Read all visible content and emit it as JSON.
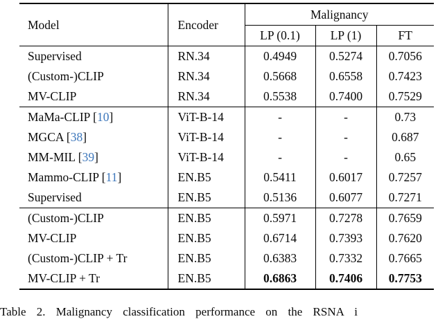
{
  "table": {
    "header": {
      "model": "Model",
      "encoder": "Encoder",
      "group": "Malignancy",
      "subcols": [
        "LP (0.1)",
        "LP (1)",
        "FT"
      ]
    },
    "sections": [
      {
        "rows": [
          {
            "model": "Supervised",
            "cite": null,
            "encoder": "RN.34",
            "lp01": "0.4949",
            "lp1": "0.5274",
            "ft": "0.7056",
            "bold": false
          },
          {
            "model": "(Custom-)CLIP",
            "cite": null,
            "encoder": "RN.34",
            "lp01": "0.5668",
            "lp1": "0.6558",
            "ft": "0.7423",
            "bold": false
          },
          {
            "model": "MV-CLIP",
            "cite": null,
            "encoder": "RN.34",
            "lp01": "0.5538",
            "lp1": "0.7400",
            "ft": "0.7529",
            "bold": false
          }
        ]
      },
      {
        "rows": [
          {
            "model": "MaMa-CLIP",
            "cite": "10",
            "encoder": "ViT-B-14",
            "lp01": "-",
            "lp1": "-",
            "ft": "0.73",
            "bold": false
          },
          {
            "model": "MGCA",
            "cite": "38",
            "encoder": "ViT-B-14",
            "lp01": "-",
            "lp1": "-",
            "ft": "0.687",
            "bold": false
          },
          {
            "model": "MM-MIL",
            "cite": "39",
            "encoder": "ViT-B-14",
            "lp01": "-",
            "lp1": "-",
            "ft": "0.65",
            "bold": false
          },
          {
            "model": "Mammo-CLIP",
            "cite": "11",
            "encoder": "EN.B5",
            "lp01": "0.5411",
            "lp1": "0.6017",
            "ft": "0.7257",
            "bold": false
          },
          {
            "model": "Supervised",
            "cite": null,
            "encoder": "EN.B5",
            "lp01": "0.5136",
            "lp1": "0.6077",
            "ft": "0.7271",
            "bold": false
          }
        ]
      },
      {
        "rows": [
          {
            "model": "(Custom-)CLIP",
            "cite": null,
            "encoder": "EN.B5",
            "lp01": "0.5971",
            "lp1": "0.7278",
            "ft": "0.7659",
            "bold": false
          },
          {
            "model": "MV-CLIP",
            "cite": null,
            "encoder": "EN.B5",
            "lp01": "0.6714",
            "lp1": "0.7393",
            "ft": "0.7620",
            "bold": false
          },
          {
            "model": "(Custom-)CLIP + Tr",
            "cite": null,
            "encoder": "EN.B5",
            "lp01": "0.6383",
            "lp1": "0.7332",
            "ft": "0.7665",
            "bold": false
          },
          {
            "model": "MV-CLIP + Tr",
            "cite": null,
            "encoder": "EN.B5",
            "lp01": "0.6863",
            "lp1": "0.7406",
            "ft": "0.7753",
            "bold": true
          }
        ]
      }
    ]
  },
  "caption": "Table 2. Malignancy classification performance on the RSNA i",
  "colors": {
    "citation_blue": "#3d77bb",
    "rule_black": "#000000"
  }
}
